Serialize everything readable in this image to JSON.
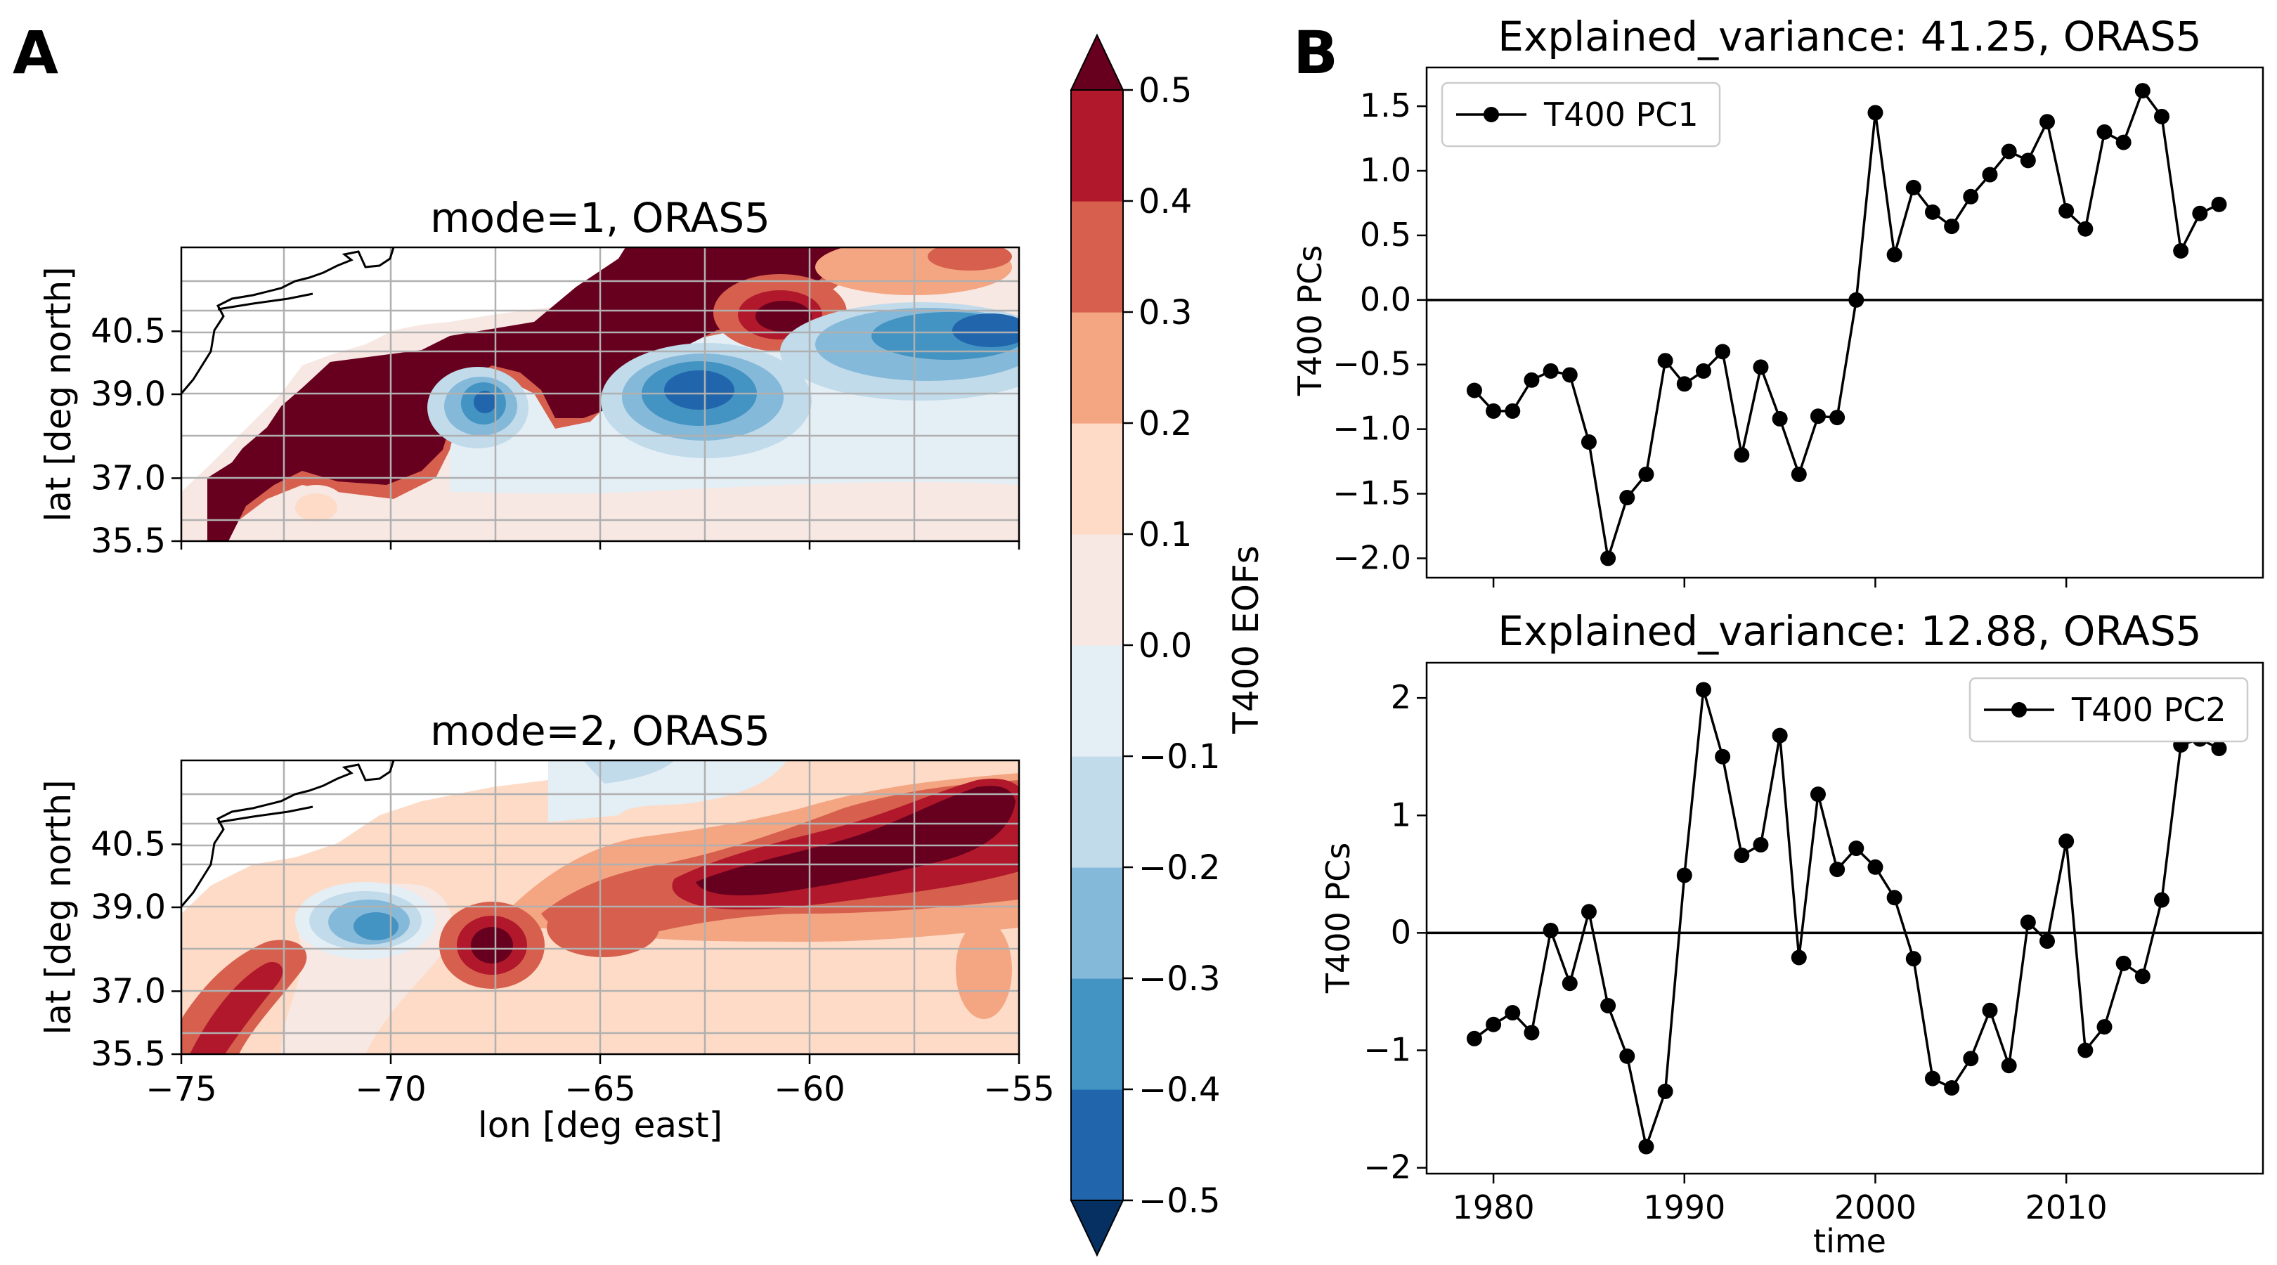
{
  "figure": {
    "panel_a_label": "A",
    "panel_b_label": "B"
  },
  "colors": {
    "darkred": "#67001f",
    "red4": "#b2182b",
    "red3": "#d6604d",
    "red2": "#f4a582",
    "red1": "#fddbc7",
    "red0": "#f7e8e3",
    "blue0": "#e4eef5",
    "blue1": "#c1dbeb",
    "blue2": "#85b9d9",
    "blue3": "#4393c3",
    "blue4": "#2166ac",
    "darkblue": "#053061",
    "line": "#000000"
  },
  "chart_data": [
    {
      "id": "map_mode1",
      "type": "heatmap",
      "title": "mode=1, ORAS5",
      "xlabel": "lon [deg east]",
      "ylabel": "lat [deg north]",
      "xlim": [
        -75,
        -55
      ],
      "ylim": [
        35.5,
        42.5
      ],
      "yticks": [
        "35.5",
        "37.0",
        "39.0",
        "40.5"
      ],
      "ytick_values": [
        35.5,
        37.0,
        39.0,
        40.5
      ],
      "xtick_values": [
        -75,
        -70,
        -65,
        -60,
        -55
      ],
      "features": [
        {
          "name": "coastal warm band (Slope Sea / Gulf Stream north wall)",
          "value": 0.5
        },
        {
          "name": "cold eddy near -68.5, 38.9",
          "value": -0.4
        },
        {
          "name": "cold core near -62.5, 38.9",
          "value": -0.5
        },
        {
          "name": "cold band near -56, 40.0",
          "value": -0.45
        },
        {
          "name": "interior offshore",
          "value": 0.05
        }
      ]
    },
    {
      "id": "map_mode2",
      "type": "heatmap",
      "title": "mode=2, ORAS5",
      "xlabel": "lon [deg east]",
      "ylabel": "lat [deg north]",
      "xlim": [
        -75,
        -55
      ],
      "ylim": [
        35.5,
        42.5
      ],
      "yticks": [
        "35.5",
        "37.0",
        "39.0",
        "40.5"
      ],
      "ytick_values": [
        35.5,
        37.0,
        39.0,
        40.5
      ],
      "xticks": [
        "−75",
        "−70",
        "−65",
        "−60",
        "−55"
      ],
      "xtick_values": [
        -75,
        -70,
        -65,
        -60,
        -55
      ],
      "features": [
        {
          "name": "warm core near -57, 40.7",
          "value": 0.5
        },
        {
          "name": "warm blob near -67.5, 38.1",
          "value": 0.45
        },
        {
          "name": "warm blob near -73, 37.2",
          "value": 0.4
        },
        {
          "name": "cold eddy near -70.5, 38.6",
          "value": -0.35
        },
        {
          "name": "background",
          "value": 0.15
        }
      ]
    },
    {
      "id": "colorbar",
      "type": "colorbar",
      "label": "T400 EOFs",
      "levels": [
        -0.5,
        -0.4,
        -0.3,
        -0.2,
        -0.1,
        0.0,
        0.1,
        0.2,
        0.3,
        0.4,
        0.5
      ],
      "tick_labels": [
        "−0.5",
        "−0.4",
        "−0.3",
        "−0.2",
        "−0.1",
        "0.0",
        "0.1",
        "0.2",
        "0.3",
        "0.4",
        "0.5"
      ],
      "extend": "both"
    },
    {
      "id": "pc1",
      "type": "line",
      "title": "Explained_variance: 41.25, ORAS5",
      "ylabel": "T400 PCs",
      "xlabel": "",
      "legend": "T400 PC1",
      "legend_loc": "top-left",
      "x": [
        1979,
        1980,
        1981,
        1982,
        1983,
        1984,
        1985,
        1986,
        1987,
        1988,
        1989,
        1990,
        1991,
        1992,
        1993,
        1994,
        1995,
        1996,
        1997,
        1998,
        1999,
        2000,
        2001,
        2002,
        2003,
        2004,
        2005,
        2006,
        2007,
        2008,
        2009,
        2010,
        2011,
        2012,
        2013,
        2014,
        2015,
        2016,
        2017,
        2018
      ],
      "y": [
        -0.7,
        -0.86,
        -0.86,
        -0.62,
        -0.55,
        -0.58,
        -1.1,
        -2.0,
        -1.53,
        -1.35,
        -0.47,
        -0.65,
        -0.55,
        -0.4,
        -1.2,
        -0.52,
        -0.92,
        -1.35,
        -0.9,
        -0.91,
        0.0,
        1.45,
        0.35,
        0.87,
        0.68,
        0.57,
        0.8,
        0.97,
        1.15,
        1.08,
        1.38,
        0.69,
        0.55,
        1.3,
        1.22,
        1.62,
        1.42,
        0.38,
        0.67,
        0.74
      ],
      "xlim": [
        1976.5,
        2020.3
      ],
      "ylim": [
        -2.15,
        1.8
      ],
      "yticks": [
        -2.0,
        -1.5,
        -1.0,
        -0.5,
        0.0,
        0.5,
        1.0,
        1.5
      ],
      "ytick_labels": [
        "−2.0",
        "−1.5",
        "−1.0",
        "−0.5",
        "0.0",
        "0.5",
        "1.0",
        "1.5"
      ],
      "zero_line": 0
    },
    {
      "id": "pc2",
      "type": "line",
      "title": "Explained_variance: 12.88, ORAS5",
      "ylabel": "T400 PCs",
      "xlabel": "time",
      "legend": "T400 PC2",
      "legend_loc": "top-right",
      "x": [
        1979,
        1980,
        1981,
        1982,
        1983,
        1984,
        1985,
        1986,
        1987,
        1988,
        1989,
        1990,
        1991,
        1992,
        1993,
        1994,
        1995,
        1996,
        1997,
        1998,
        1999,
        2000,
        2001,
        2002,
        2003,
        2004,
        2005,
        2006,
        2007,
        2008,
        2009,
        2010,
        2011,
        2012,
        2013,
        2014,
        2015,
        2016,
        2017,
        2018
      ],
      "y": [
        -0.9,
        -0.78,
        -0.68,
        -0.85,
        0.02,
        -0.43,
        0.18,
        -0.62,
        -1.05,
        -1.82,
        -1.35,
        0.49,
        2.07,
        1.5,
        0.66,
        0.75,
        1.68,
        -0.21,
        1.18,
        0.54,
        0.72,
        0.56,
        0.3,
        -0.22,
        -1.24,
        -1.32,
        -1.07,
        -0.66,
        -1.13,
        0.09,
        -0.07,
        0.78,
        -1.0,
        -0.8,
        -0.26,
        -0.37,
        0.28,
        1.6,
        1.65,
        1.57
      ],
      "xlim": [
        1976.5,
        2020.3
      ],
      "ylim": [
        -2.05,
        2.3
      ],
      "yticks": [
        -2,
        -1,
        0,
        1,
        2
      ],
      "ytick_labels": [
        "−2",
        "−1",
        "0",
        "1",
        "2"
      ],
      "xticks": [
        1980,
        1990,
        2000,
        2010
      ],
      "xtick_labels": [
        "1980",
        "1990",
        "2000",
        "2010"
      ],
      "zero_line": 0
    }
  ]
}
